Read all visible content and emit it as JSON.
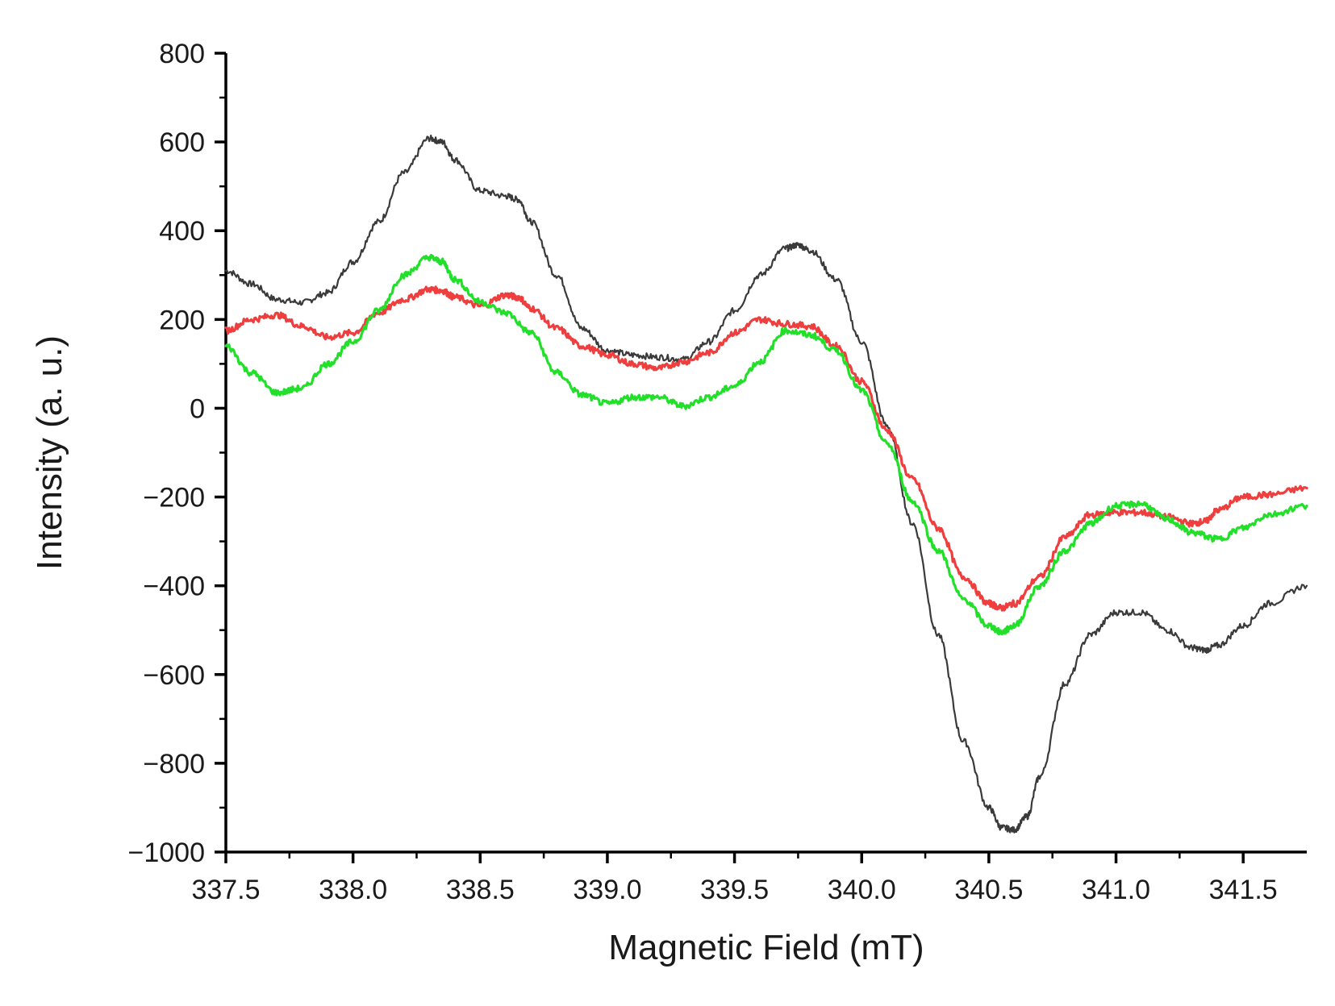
{
  "chart_data": {
    "type": "line",
    "title": "",
    "xlabel": "Magnetic Field (mT)",
    "ylabel": "Intensity (a. u.)",
    "xlim": [
      337.5,
      341.75
    ],
    "ylim": [
      -1000,
      800
    ],
    "x_ticks": [
      337.5,
      338.0,
      338.5,
      339.0,
      339.5,
      340.0,
      340.5,
      341.0,
      341.5
    ],
    "x_tick_labels": [
      "337.5",
      "338.0",
      "338.5",
      "339.0",
      "339.5",
      "340.0",
      "340.5",
      "341.0",
      "341.5"
    ],
    "y_ticks": [
      800,
      600,
      400,
      200,
      0,
      -200,
      -400,
      -600,
      -800,
      -1000
    ],
    "y_tick_labels": [
      "800",
      "600",
      "400",
      "200",
      "0",
      "−200",
      "−400",
      "−600",
      "−800",
      "−1000"
    ],
    "grid": false,
    "legend": "none",
    "series": [
      {
        "color": "#3a3a3a",
        "width": 2.2,
        "points": [
          [
            337.5,
            310
          ],
          [
            337.6,
            280
          ],
          [
            337.7,
            245
          ],
          [
            337.8,
            238
          ],
          [
            337.9,
            260
          ],
          [
            338.0,
            330
          ],
          [
            338.1,
            420
          ],
          [
            338.2,
            530
          ],
          [
            338.3,
            608
          ],
          [
            338.35,
            600
          ],
          [
            338.4,
            560
          ],
          [
            338.5,
            490
          ],
          [
            338.6,
            478
          ],
          [
            338.65,
            470
          ],
          [
            338.7,
            420
          ],
          [
            338.8,
            300
          ],
          [
            338.9,
            180
          ],
          [
            339.0,
            130
          ],
          [
            339.1,
            120
          ],
          [
            339.2,
            115
          ],
          [
            339.3,
            110
          ],
          [
            339.4,
            150
          ],
          [
            339.5,
            220
          ],
          [
            339.6,
            300
          ],
          [
            339.7,
            360
          ],
          [
            339.75,
            368
          ],
          [
            339.8,
            355
          ],
          [
            339.9,
            290
          ],
          [
            340.0,
            150
          ],
          [
            340.1,
            -40
          ],
          [
            340.2,
            -260
          ],
          [
            340.3,
            -510
          ],
          [
            340.4,
            -750
          ],
          [
            340.5,
            -900
          ],
          [
            340.55,
            -945
          ],
          [
            340.6,
            -950
          ],
          [
            340.65,
            -920
          ],
          [
            340.7,
            -830
          ],
          [
            340.8,
            -620
          ],
          [
            340.9,
            -510
          ],
          [
            341.0,
            -460
          ],
          [
            341.1,
            -460
          ],
          [
            341.2,
            -500
          ],
          [
            341.3,
            -540
          ],
          [
            341.35,
            -545
          ],
          [
            341.4,
            -535
          ],
          [
            341.5,
            -490
          ],
          [
            341.6,
            -440
          ],
          [
            341.75,
            -400
          ]
        ]
      },
      {
        "color": "#ef3e3e",
        "width": 3.2,
        "points": [
          [
            337.5,
            175
          ],
          [
            337.6,
            200
          ],
          [
            337.7,
            210
          ],
          [
            337.8,
            185
          ],
          [
            337.9,
            160
          ],
          [
            338.0,
            170
          ],
          [
            338.1,
            215
          ],
          [
            338.2,
            245
          ],
          [
            338.3,
            268
          ],
          [
            338.35,
            265
          ],
          [
            338.4,
            250
          ],
          [
            338.5,
            230
          ],
          [
            338.6,
            255
          ],
          [
            338.65,
            250
          ],
          [
            338.7,
            225
          ],
          [
            338.8,
            180
          ],
          [
            338.9,
            140
          ],
          [
            339.0,
            120
          ],
          [
            339.1,
            100
          ],
          [
            339.2,
            90
          ],
          [
            339.3,
            105
          ],
          [
            339.4,
            125
          ],
          [
            339.5,
            170
          ],
          [
            339.6,
            200
          ],
          [
            339.7,
            190
          ],
          [
            339.8,
            185
          ],
          [
            339.9,
            140
          ],
          [
            340.0,
            60
          ],
          [
            340.1,
            -50
          ],
          [
            340.2,
            -160
          ],
          [
            340.3,
            -270
          ],
          [
            340.4,
            -380
          ],
          [
            340.5,
            -440
          ],
          [
            340.55,
            -450
          ],
          [
            340.6,
            -440
          ],
          [
            340.7,
            -380
          ],
          [
            340.8,
            -290
          ],
          [
            340.9,
            -240
          ],
          [
            341.0,
            -235
          ],
          [
            341.1,
            -235
          ],
          [
            341.2,
            -245
          ],
          [
            341.3,
            -260
          ],
          [
            341.35,
            -255
          ],
          [
            341.4,
            -230
          ],
          [
            341.5,
            -200
          ],
          [
            341.6,
            -195
          ],
          [
            341.75,
            -180
          ]
        ]
      },
      {
        "color": "#22e02a",
        "width": 3.2,
        "points": [
          [
            337.5,
            140
          ],
          [
            337.6,
            80
          ],
          [
            337.7,
            35
          ],
          [
            337.8,
            45
          ],
          [
            337.9,
            100
          ],
          [
            338.0,
            150
          ],
          [
            338.1,
            220
          ],
          [
            338.2,
            300
          ],
          [
            338.3,
            340
          ],
          [
            338.35,
            330
          ],
          [
            338.4,
            290
          ],
          [
            338.5,
            240
          ],
          [
            338.6,
            215
          ],
          [
            338.7,
            170
          ],
          [
            338.8,
            80
          ],
          [
            338.9,
            30
          ],
          [
            339.0,
            10
          ],
          [
            339.1,
            25
          ],
          [
            339.2,
            25
          ],
          [
            339.3,
            5
          ],
          [
            339.4,
            25
          ],
          [
            339.5,
            50
          ],
          [
            339.6,
            105
          ],
          [
            339.7,
            175
          ],
          [
            339.8,
            165
          ],
          [
            339.9,
            130
          ],
          [
            340.0,
            40
          ],
          [
            340.1,
            -80
          ],
          [
            340.2,
            -210
          ],
          [
            340.3,
            -320
          ],
          [
            340.4,
            -430
          ],
          [
            340.5,
            -490
          ],
          [
            340.55,
            -505
          ],
          [
            340.6,
            -490
          ],
          [
            340.7,
            -400
          ],
          [
            340.8,
            -320
          ],
          [
            340.9,
            -260
          ],
          [
            341.0,
            -220
          ],
          [
            341.1,
            -215
          ],
          [
            341.2,
            -250
          ],
          [
            341.3,
            -280
          ],
          [
            341.4,
            -295
          ],
          [
            341.5,
            -270
          ],
          [
            341.6,
            -240
          ],
          [
            341.75,
            -220
          ]
        ]
      }
    ]
  }
}
